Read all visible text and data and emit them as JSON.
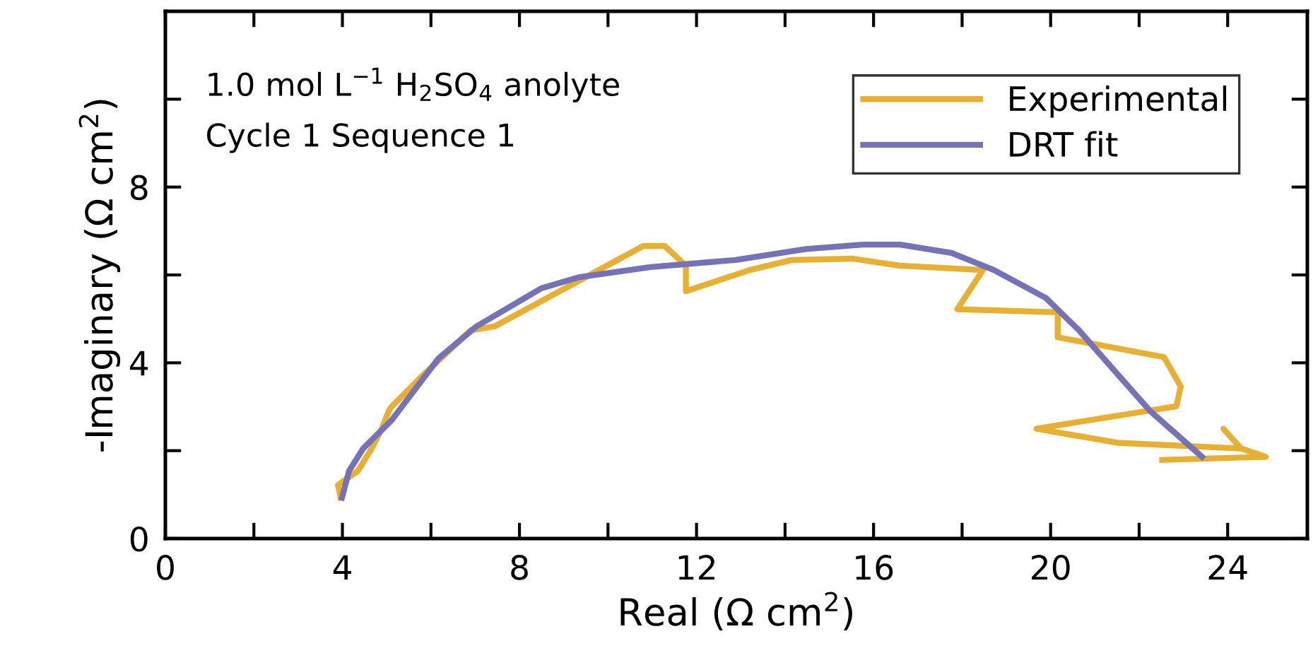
{
  "chart_data": {
    "type": "line",
    "xlabel": "Real (Ω cm$^{2}$)",
    "ylabel": "-Imaginary (Ω cm$^{2}$)",
    "annotations": [
      "1.0 mol L$^{−1}$ H$_{2}$SO$_{4}$ anolyte",
      "Cycle 1 Sequence 1"
    ],
    "xlim": [
      0,
      25.8
    ],
    "ylim": [
      0,
      12
    ],
    "xticks": [
      0,
      {
        "value": 2,
        "label": null
      },
      4,
      {
        "value": 6,
        "label": null
      },
      8,
      {
        "value": 10,
        "label": null
      },
      12,
      {
        "value": 14,
        "label": null
      },
      16,
      {
        "value": 18,
        "label": null
      },
      20,
      {
        "value": 22,
        "label": null
      },
      24
    ],
    "yticks": [
      0,
      {
        "value": 2,
        "label": null
      },
      4,
      {
        "value": 6,
        "label": null
      },
      8,
      {
        "value": 10,
        "label": null
      }
    ],
    "grid": false,
    "legend": "top right",
    "marker": "none",
    "line_style": "solid",
    "series": [
      {
        "name": "Experimental",
        "color": "#e8b032",
        "x": [
          3.96,
          3.9,
          4.35,
          4.66,
          4.89,
          5.05,
          5.11,
          5.75,
          6.9,
          7.44,
          10.8,
          11.28,
          11.76,
          11.76,
          13.2,
          14.15,
          15.53,
          16.6,
          18.47,
          17.89,
          20.16,
          20.16,
          22.56,
          22.94,
          22.84,
          19.68,
          21.5,
          24.3,
          23.9,
          24.3,
          24.86,
          22.52
        ],
        "values": [
          0.93,
          1.22,
          1.54,
          2.05,
          2.5,
          2.91,
          3.0,
          3.65,
          4.74,
          4.83,
          6.66,
          6.66,
          6.21,
          5.63,
          6.11,
          6.34,
          6.37,
          6.21,
          6.11,
          5.22,
          5.15,
          4.58,
          4.13,
          3.46,
          3.01,
          2.5,
          2.18,
          2.05,
          2.5,
          2.05,
          1.86,
          1.79
        ]
      },
      {
        "name": "DRT fit",
        "color": "#7672b8",
        "x": [
          3.99,
          4.15,
          4.47,
          5.11,
          6.17,
          7.03,
          8.5,
          9.36,
          10.96,
          12.88,
          14.47,
          15.75,
          16.6,
          17.76,
          18.72,
          19.9,
          20.64,
          21.4,
          22.24,
          22.78,
          23.42
        ],
        "values": [
          0.93,
          1.54,
          2.05,
          2.69,
          4.1,
          4.83,
          5.7,
          5.95,
          6.18,
          6.34,
          6.59,
          6.69,
          6.69,
          6.5,
          6.11,
          5.47,
          4.74,
          3.87,
          2.91,
          2.43,
          1.86
        ]
      }
    ]
  }
}
